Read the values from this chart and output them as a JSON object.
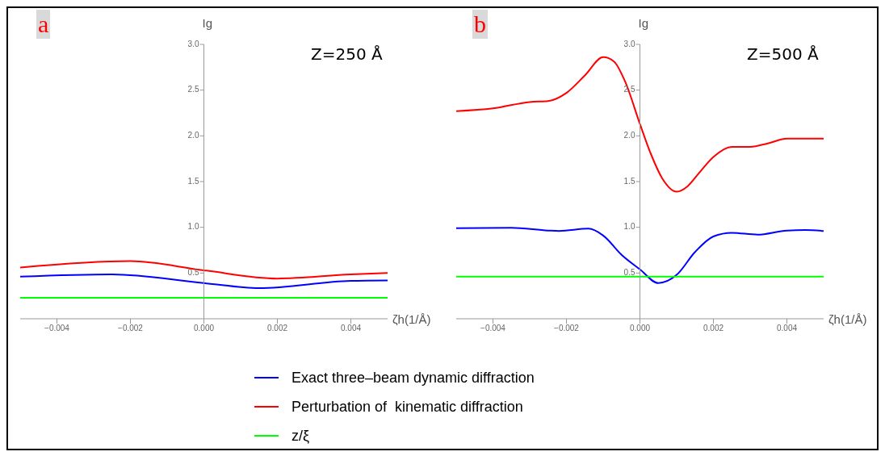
{
  "chart_data": [
    {
      "type": "line",
      "title": "a",
      "annotations": [
        "Z=250 Å"
      ],
      "xlabel": "ζh(1/Å)",
      "ylabel": "Ig",
      "xlim": [
        -0.005,
        0.005
      ],
      "ylim": [
        0,
        3
      ],
      "xticks": [
        {
          "value": -0.004,
          "label": "−0.004"
        },
        {
          "value": -0.002,
          "label": "−0.002"
        },
        {
          "value": 0,
          "label": "0.000"
        },
        {
          "value": 0.002,
          "label": "0.002"
        },
        {
          "value": 0.004,
          "label": "0.004"
        }
      ],
      "yticks": [
        0.5,
        {
          "value": 1,
          "label": "1.0"
        },
        1.5,
        {
          "value": 2,
          "label": "2.0"
        },
        2.5,
        {
          "value": 3,
          "label": "3.0"
        }
      ],
      "legend": "bottom",
      "grid": false,
      "marker": "none",
      "line_style": "solid",
      "series": [
        {
          "name": "Exact three‒beam dynamic diffraction",
          "color": "#0000ff",
          "x": [
            -0.005,
            -0.0025,
            0,
            0.0015,
            0.004,
            0.005
          ],
          "values": [
            0.46,
            0.485,
            0.39,
            0.335,
            0.415,
            0.42
          ]
        },
        {
          "name": "Perturbation of  kinematic diffraction",
          "color": "#ff0000",
          "x": [
            -0.005,
            -0.002,
            0,
            0.002,
            0.004,
            0.005
          ],
          "values": [
            0.56,
            0.63,
            0.53,
            0.44,
            0.485,
            0.5
          ]
        },
        {
          "name": "z/ξ",
          "color": "#00ff00",
          "x": [
            -0.005,
            0.005
          ],
          "values": [
            0.23,
            0.23
          ]
        }
      ]
    },
    {
      "type": "line",
      "title": "b",
      "annotations": [
        "Z=500 Å"
      ],
      "xlabel": "ζh(1/Å)",
      "ylabel": "Ig",
      "xlim": [
        -0.005,
        0.005
      ],
      "ylim": [
        0,
        3
      ],
      "xticks": [
        {
          "value": -0.004,
          "label": "−0.004"
        },
        {
          "value": -0.002,
          "label": "−0.002"
        },
        {
          "value": 0,
          "label": "0.000"
        },
        {
          "value": 0.002,
          "label": "0.002"
        },
        {
          "value": 0.004,
          "label": "0.004"
        }
      ],
      "yticks": [
        0.5,
        {
          "value": 1,
          "label": "1.0"
        },
        1.5,
        {
          "value": 2,
          "label": "2.0"
        },
        2.5,
        {
          "value": 3,
          "label": "3.0"
        }
      ],
      "grid": false,
      "marker": "none",
      "line_style": "solid",
      "series": [
        {
          "color": "#0000ff",
          "x": [
            -0.005,
            -0.0035,
            -0.0025,
            -0.0022,
            -0.0014,
            -0.001,
            -0.0005,
            0,
            0.0005,
            0.001,
            0.0015,
            0.002,
            0.0025,
            0.0032,
            0.004,
            0.0045,
            0.005
          ],
          "values": [
            0.99,
            0.995,
            0.965,
            0.96,
            0.985,
            0.91,
            0.7,
            0.54,
            0.39,
            0.48,
            0.73,
            0.9,
            0.94,
            0.92,
            0.965,
            0.97,
            0.96
          ]
        },
        {
          "color": "#ff0000",
          "x": [
            -0.005,
            -0.004,
            -0.003,
            -0.0025,
            -0.002,
            -0.0015,
            -0.001,
            -0.0007,
            -0.0004,
            0,
            0.0003,
            0.0006,
            0.001,
            0.0013,
            0.0016,
            0.002,
            0.0025,
            0.003,
            0.0035,
            0.004,
            0.005
          ],
          "values": [
            2.27,
            2.3,
            2.37,
            2.38,
            2.47,
            2.66,
            2.86,
            2.81,
            2.59,
            2.13,
            1.8,
            1.54,
            1.39,
            1.45,
            1.59,
            1.77,
            1.88,
            1.88,
            1.92,
            1.97,
            1.97
          ]
        },
        {
          "color": "#00ff00",
          "x": [
            -0.005,
            0.005
          ],
          "values": [
            0.46,
            0.46
          ]
        }
      ]
    }
  ]
}
